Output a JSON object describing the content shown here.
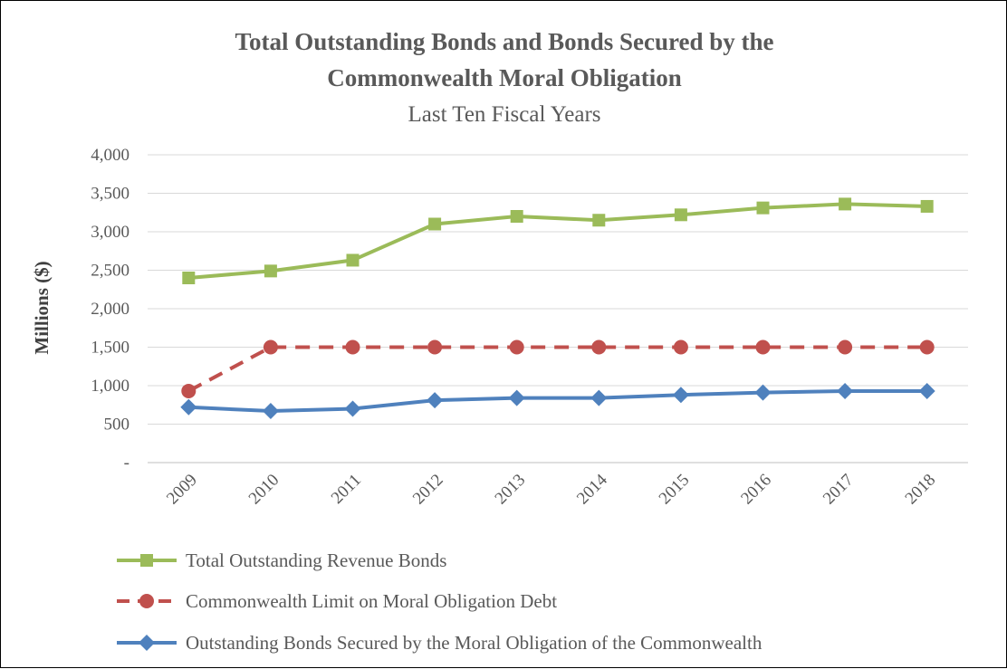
{
  "chart_data": {
    "type": "line",
    "title_line1": "Total Outstanding  Bonds and Bonds Secured by the",
    "title_line2": "Commonwealth  Moral Obligation",
    "subtitle": "Last Ten Fiscal Years",
    "xlabel": "",
    "ylabel": "Millions ($)",
    "ylim": [
      0,
      4000
    ],
    "y_ticks": [
      0,
      500,
      1000,
      1500,
      2000,
      2500,
      3000,
      3500,
      4000
    ],
    "y_tick_labels": [
      "-",
      "500",
      "1,000",
      "1,500",
      "2,000",
      "2,500",
      "3,000",
      "3,500",
      "4,000"
    ],
    "categories": [
      "2009",
      "2010",
      "2011",
      "2012",
      "2013",
      "2014",
      "2015",
      "2016",
      "2017",
      "2018"
    ],
    "grid": true,
    "legend_position": "bottom",
    "series": [
      {
        "name": "Total Outstanding Revenue Bonds",
        "color": "#9BBB59",
        "marker": "square",
        "dash": "solid",
        "values": [
          2400,
          2490,
          2630,
          3100,
          3200,
          3150,
          3220,
          3310,
          3360,
          3330
        ]
      },
      {
        "name": "Commonwealth Limit on Moral Obligation Debt",
        "color": "#C0504D",
        "marker": "circle",
        "dash": "dashed",
        "values": [
          930,
          1500,
          1500,
          1500,
          1500,
          1500,
          1500,
          1500,
          1500,
          1500
        ]
      },
      {
        "name": "Outstanding Bonds Secured by the Moral Obligation of the Commonwealth",
        "color": "#4F81BD",
        "marker": "diamond",
        "dash": "solid",
        "values": [
          720,
          670,
          700,
          810,
          840,
          840,
          880,
          910,
          930,
          930
        ]
      }
    ]
  }
}
